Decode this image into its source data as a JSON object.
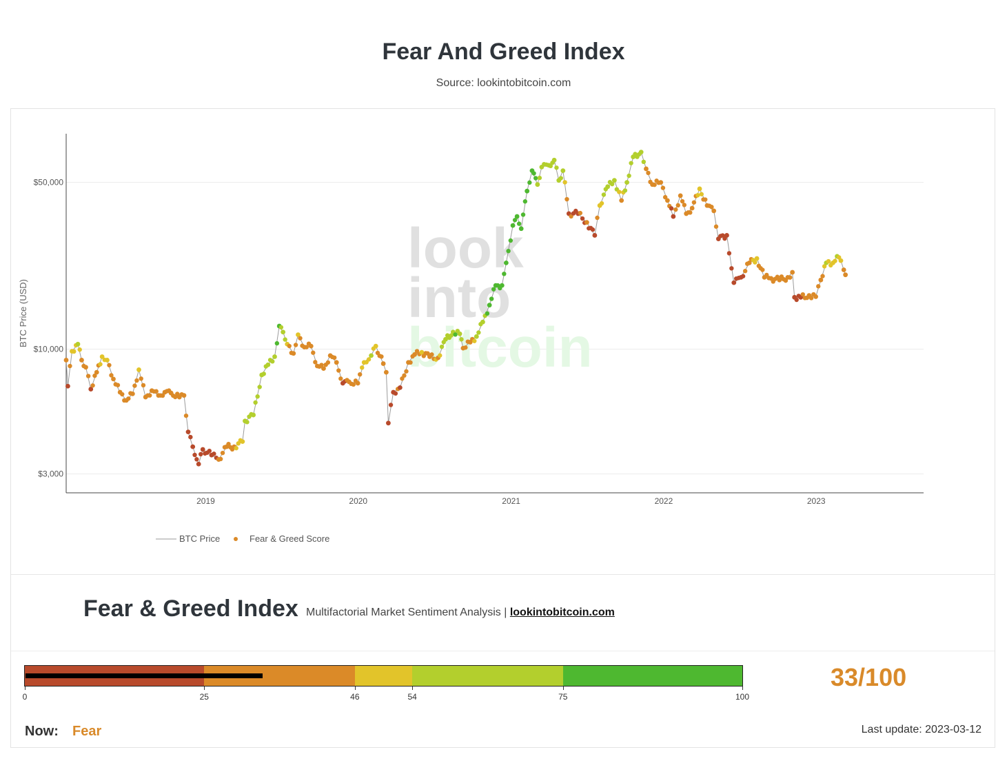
{
  "page": {
    "title": "Fear And Greed Index",
    "source": "Source: lookintobitcoin.com"
  },
  "watermark": [
    "look",
    "into",
    "bitcoin"
  ],
  "legend": {
    "price_label": "BTC Price",
    "score_label": "Fear & Greed Score"
  },
  "chart_data": {
    "type": "scatter",
    "ylabel": "BTC Price (USD)",
    "yscale": "log",
    "ylim": [
      2500,
      80000
    ],
    "xlim": [
      "2018-02-01",
      "2023-09-15"
    ],
    "y_ticks": [
      {
        "value": 50000,
        "label": "$50,000"
      },
      {
        "value": 10000,
        "label": "$10,000"
      },
      {
        "value": 3000,
        "label": "$3,000"
      }
    ],
    "x_ticks": [
      {
        "value": "2019-01-01",
        "label": "2019"
      },
      {
        "value": "2020-01-01",
        "label": "2020"
      },
      {
        "value": "2021-01-01",
        "label": "2021"
      },
      {
        "value": "2022-01-01",
        "label": "2022"
      },
      {
        "value": "2023-01-01",
        "label": "2023"
      }
    ],
    "grid": true,
    "legend_position": "bottom-left",
    "series": [
      {
        "name": "BTC Price",
        "style": "line",
        "color": "#999999"
      },
      {
        "name": "Fear & Greed Score",
        "style": "markers",
        "color_scale": [
          "#b84a2b",
          "#db8a28",
          "#e2c42a",
          "#b3cf2d",
          "#4eb830"
        ]
      }
    ],
    "points": [
      {
        "x": "2018-02-01",
        "y": 9000,
        "s": 32
      },
      {
        "x": "2018-02-05",
        "y": 7000,
        "s": 22
      },
      {
        "x": "2018-02-15",
        "y": 9800,
        "s": 48
      },
      {
        "x": "2018-03-01",
        "y": 10500,
        "s": 56
      },
      {
        "x": "2018-03-10",
        "y": 9000,
        "s": 40
      },
      {
        "x": "2018-03-20",
        "y": 8400,
        "s": 34
      },
      {
        "x": "2018-04-01",
        "y": 6800,
        "s": 22
      },
      {
        "x": "2018-04-15",
        "y": 8000,
        "s": 38
      },
      {
        "x": "2018-04-28",
        "y": 9300,
        "s": 50
      },
      {
        "x": "2018-05-10",
        "y": 9000,
        "s": 46
      },
      {
        "x": "2018-05-25",
        "y": 7500,
        "s": 34
      },
      {
        "x": "2018-06-10",
        "y": 6600,
        "s": 30
      },
      {
        "x": "2018-06-25",
        "y": 6100,
        "s": 26
      },
      {
        "x": "2018-07-10",
        "y": 6500,
        "s": 34
      },
      {
        "x": "2018-07-25",
        "y": 8200,
        "s": 48
      },
      {
        "x": "2018-08-10",
        "y": 6300,
        "s": 30
      },
      {
        "x": "2018-08-25",
        "y": 6700,
        "s": 34
      },
      {
        "x": "2018-09-10",
        "y": 6400,
        "s": 30
      },
      {
        "x": "2018-09-25",
        "y": 6600,
        "s": 34
      },
      {
        "x": "2018-10-10",
        "y": 6550,
        "s": 36
      },
      {
        "x": "2018-10-30",
        "y": 6300,
        "s": 38
      },
      {
        "x": "2018-11-10",
        "y": 6400,
        "s": 40
      },
      {
        "x": "2018-11-20",
        "y": 4500,
        "s": 20
      },
      {
        "x": "2018-12-01",
        "y": 3900,
        "s": 14
      },
      {
        "x": "2018-12-15",
        "y": 3300,
        "s": 10
      },
      {
        "x": "2018-12-25",
        "y": 3800,
        "s": 18
      },
      {
        "x": "2019-01-15",
        "y": 3600,
        "s": 22
      },
      {
        "x": "2019-02-01",
        "y": 3450,
        "s": 26
      },
      {
        "x": "2019-02-20",
        "y": 3900,
        "s": 40
      },
      {
        "x": "2019-03-10",
        "y": 3900,
        "s": 44
      },
      {
        "x": "2019-03-30",
        "y": 4100,
        "s": 52
      },
      {
        "x": "2019-04-05",
        "y": 5000,
        "s": 56
      },
      {
        "x": "2019-04-25",
        "y": 5300,
        "s": 58
      },
      {
        "x": "2019-05-15",
        "y": 7800,
        "s": 66
      },
      {
        "x": "2019-05-30",
        "y": 8600,
        "s": 68
      },
      {
        "x": "2019-06-15",
        "y": 9300,
        "s": 72
      },
      {
        "x": "2019-06-26",
        "y": 12500,
        "s": 78
      },
      {
        "x": "2019-07-05",
        "y": 11800,
        "s": 62
      },
      {
        "x": "2019-07-15",
        "y": 10500,
        "s": 48
      },
      {
        "x": "2019-07-30",
        "y": 9600,
        "s": 40
      },
      {
        "x": "2019-08-10",
        "y": 11500,
        "s": 52
      },
      {
        "x": "2019-08-25",
        "y": 10200,
        "s": 38
      },
      {
        "x": "2019-09-10",
        "y": 10300,
        "s": 40
      },
      {
        "x": "2019-09-25",
        "y": 8500,
        "s": 28
      },
      {
        "x": "2019-10-10",
        "y": 8300,
        "s": 30
      },
      {
        "x": "2019-10-26",
        "y": 9400,
        "s": 44
      },
      {
        "x": "2019-11-10",
        "y": 8800,
        "s": 38
      },
      {
        "x": "2019-11-25",
        "y": 7200,
        "s": 24
      },
      {
        "x": "2019-12-10",
        "y": 7300,
        "s": 28
      },
      {
        "x": "2019-12-31",
        "y": 7200,
        "s": 34
      },
      {
        "x": "2020-01-15",
        "y": 8800,
        "s": 48
      },
      {
        "x": "2020-02-01",
        "y": 9400,
        "s": 54
      },
      {
        "x": "2020-02-12",
        "y": 10300,
        "s": 50
      },
      {
        "x": "2020-03-01",
        "y": 8700,
        "s": 40
      },
      {
        "x": "2020-03-08",
        "y": 8000,
        "s": 32
      },
      {
        "x": "2020-03-13",
        "y": 4900,
        "s": 10
      },
      {
        "x": "2020-03-25",
        "y": 6600,
        "s": 20
      },
      {
        "x": "2020-04-10",
        "y": 6900,
        "s": 24
      },
      {
        "x": "2020-04-30",
        "y": 8800,
        "s": 38
      },
      {
        "x": "2020-05-15",
        "y": 9500,
        "s": 44
      },
      {
        "x": "2020-06-01",
        "y": 9700,
        "s": 46
      },
      {
        "x": "2020-06-20",
        "y": 9300,
        "s": 42
      },
      {
        "x": "2020-07-10",
        "y": 9200,
        "s": 44
      },
      {
        "x": "2020-07-28",
        "y": 11000,
        "s": 70
      },
      {
        "x": "2020-08-15",
        "y": 11800,
        "s": 74
      },
      {
        "x": "2020-08-31",
        "y": 11600,
        "s": 70
      },
      {
        "x": "2020-09-08",
        "y": 10100,
        "s": 40
      },
      {
        "x": "2020-09-25",
        "y": 10700,
        "s": 44
      },
      {
        "x": "2020-10-10",
        "y": 11300,
        "s": 54
      },
      {
        "x": "2020-10-25",
        "y": 13000,
        "s": 68
      },
      {
        "x": "2020-11-10",
        "y": 15300,
        "s": 80
      },
      {
        "x": "2020-11-25",
        "y": 18500,
        "s": 88
      },
      {
        "x": "2020-12-10",
        "y": 18500,
        "s": 86
      },
      {
        "x": "2020-12-20",
        "y": 23000,
        "s": 92
      },
      {
        "x": "2021-01-05",
        "y": 33000,
        "s": 92
      },
      {
        "x": "2021-01-15",
        "y": 36000,
        "s": 86
      },
      {
        "x": "2021-01-25",
        "y": 32000,
        "s": 76
      },
      {
        "x": "2021-02-08",
        "y": 46000,
        "s": 88
      },
      {
        "x": "2021-02-20",
        "y": 56000,
        "s": 88
      },
      {
        "x": "2021-03-05",
        "y": 49000,
        "s": 74
      },
      {
        "x": "2021-03-15",
        "y": 58000,
        "s": 72
      },
      {
        "x": "2021-04-01",
        "y": 59000,
        "s": 70
      },
      {
        "x": "2021-04-14",
        "y": 62000,
        "s": 62
      },
      {
        "x": "2021-04-25",
        "y": 51000,
        "s": 54
      },
      {
        "x": "2021-05-05",
        "y": 56000,
        "s": 60
      },
      {
        "x": "2021-05-19",
        "y": 37000,
        "s": 22
      },
      {
        "x": "2021-06-10",
        "y": 37000,
        "s": 24
      },
      {
        "x": "2021-07-01",
        "y": 34000,
        "s": 28
      },
      {
        "x": "2021-07-20",
        "y": 30000,
        "s": 20
      },
      {
        "x": "2021-08-01",
        "y": 40000,
        "s": 52
      },
      {
        "x": "2021-08-20",
        "y": 48000,
        "s": 66
      },
      {
        "x": "2021-09-05",
        "y": 51000,
        "s": 68
      },
      {
        "x": "2021-09-22",
        "y": 42000,
        "s": 36
      },
      {
        "x": "2021-10-05",
        "y": 50000,
        "s": 64
      },
      {
        "x": "2021-10-20",
        "y": 64000,
        "s": 70
      },
      {
        "x": "2021-11-08",
        "y": 67000,
        "s": 74
      },
      {
        "x": "2021-11-20",
        "y": 57000,
        "s": 44
      },
      {
        "x": "2021-12-05",
        "y": 49000,
        "s": 28
      },
      {
        "x": "2021-12-25",
        "y": 50000,
        "s": 36
      },
      {
        "x": "2022-01-10",
        "y": 42000,
        "s": 28
      },
      {
        "x": "2022-01-24",
        "y": 36000,
        "s": 22
      },
      {
        "x": "2022-02-10",
        "y": 44000,
        "s": 40
      },
      {
        "x": "2022-02-24",
        "y": 37000,
        "s": 30
      },
      {
        "x": "2022-03-10",
        "y": 39000,
        "s": 38
      },
      {
        "x": "2022-03-28",
        "y": 47000,
        "s": 50
      },
      {
        "x": "2022-04-15",
        "y": 40000,
        "s": 36
      },
      {
        "x": "2022-05-01",
        "y": 38000,
        "s": 32
      },
      {
        "x": "2022-05-12",
        "y": 29000,
        "s": 18
      },
      {
        "x": "2022-06-01",
        "y": 30000,
        "s": 20
      },
      {
        "x": "2022-06-18",
        "y": 19000,
        "s": 12
      },
      {
        "x": "2022-07-05",
        "y": 20000,
        "s": 18
      },
      {
        "x": "2022-07-25",
        "y": 23000,
        "s": 42
      },
      {
        "x": "2022-08-12",
        "y": 24000,
        "s": 48
      },
      {
        "x": "2022-08-30",
        "y": 20000,
        "s": 28
      },
      {
        "x": "2022-09-15",
        "y": 19800,
        "s": 26
      },
      {
        "x": "2022-10-05",
        "y": 19500,
        "s": 30
      },
      {
        "x": "2022-10-25",
        "y": 20000,
        "s": 32
      },
      {
        "x": "2022-11-05",
        "y": 21000,
        "s": 38
      },
      {
        "x": "2022-11-10",
        "y": 16500,
        "s": 18
      },
      {
        "x": "2022-11-25",
        "y": 16500,
        "s": 24
      },
      {
        "x": "2022-12-15",
        "y": 16800,
        "s": 28
      },
      {
        "x": "2022-12-31",
        "y": 16600,
        "s": 28
      },
      {
        "x": "2023-01-12",
        "y": 19500,
        "s": 42
      },
      {
        "x": "2023-01-25",
        "y": 23000,
        "s": 54
      },
      {
        "x": "2023-02-10",
        "y": 23000,
        "s": 52
      },
      {
        "x": "2023-02-20",
        "y": 24500,
        "s": 56
      },
      {
        "x": "2023-03-01",
        "y": 23500,
        "s": 50
      },
      {
        "x": "2023-03-08",
        "y": 21500,
        "s": 40
      },
      {
        "x": "2023-03-12",
        "y": 20500,
        "s": 33
      }
    ]
  },
  "widget": {
    "title": "Fear & Greed Index",
    "subtitle": "Multifactorial Market Sentiment Analysis |",
    "link_text": "lookintobitcoin.com",
    "score": 33,
    "score_label": "33/100",
    "now_label": "Now:",
    "now_value": "Fear",
    "last_update": "Last update: 2023-03-12",
    "scale_min": 0,
    "scale_max": 100,
    "bands": [
      {
        "from": 0,
        "to": 25,
        "color": "#b84a2b"
      },
      {
        "from": 25,
        "to": 46,
        "color": "#db8a28"
      },
      {
        "from": 46,
        "to": 54,
        "color": "#e2c42a"
      },
      {
        "from": 54,
        "to": 75,
        "color": "#b3cf2d"
      },
      {
        "from": 75,
        "to": 100,
        "color": "#4eb830"
      }
    ],
    "ticks": [
      "0",
      "25",
      "46",
      "54",
      "75",
      "100"
    ],
    "accent_color": "#d98a2a"
  }
}
